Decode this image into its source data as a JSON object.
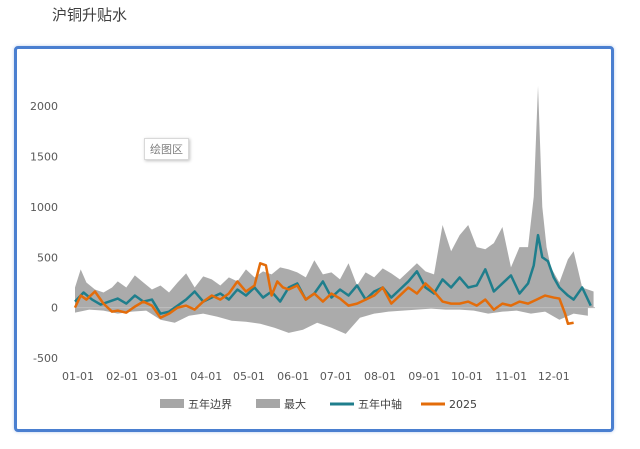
{
  "title": "沪铜升贴水",
  "plot_area_tooltip": "绘图区",
  "chart_data": {
    "type": "area",
    "title": "",
    "xlabel": "",
    "ylabel": "",
    "ylim": [
      -500,
      2200
    ],
    "y_ticks": [
      -500,
      0,
      500,
      1000,
      1500,
      2000
    ],
    "x_range": [
      0,
      365
    ],
    "x_ticks": [
      {
        "label": "01-01",
        "x": 0
      },
      {
        "label": "02-01",
        "x": 31
      },
      {
        "label": "03-01",
        "x": 59
      },
      {
        "label": "04-01",
        "x": 90
      },
      {
        "label": "05-01",
        "x": 120
      },
      {
        "label": "06-01",
        "x": 151
      },
      {
        "label": "07-01",
        "x": 181
      },
      {
        "label": "08-01",
        "x": 212
      },
      {
        "label": "09-01",
        "x": 243
      },
      {
        "label": "10-01",
        "x": 273
      },
      {
        "label": "11-01",
        "x": 304
      },
      {
        "label": "12-01",
        "x": 334
      }
    ],
    "legend_position": "bottom",
    "grid": false,
    "series": [
      {
        "name": "五年边界",
        "type": "area",
        "color": "#a6a6a6",
        "x": [
          0,
          10,
          20,
          30,
          40,
          50,
          60,
          70,
          80,
          90,
          100,
          110,
          120,
          130,
          140,
          150,
          160,
          170,
          180,
          190,
          200,
          210,
          220,
          230,
          240,
          250,
          260,
          270,
          280,
          290,
          300,
          310,
          320,
          330,
          340,
          350,
          360
        ],
        "y": [
          -50,
          -20,
          -30,
          -60,
          -40,
          -30,
          -120,
          -150,
          -80,
          -60,
          -90,
          -130,
          -140,
          -160,
          -200,
          -250,
          -220,
          -150,
          -200,
          -260,
          -100,
          -60,
          -40,
          -30,
          -20,
          -10,
          -20,
          -20,
          -30,
          -60,
          -40,
          -30,
          -60,
          -40,
          -120,
          -60,
          -80
        ]
      },
      {
        "name": "最大",
        "type": "area",
        "color": "#a6a6a6",
        "x": [
          0,
          4,
          8,
          14,
          20,
          26,
          30,
          36,
          42,
          48,
          54,
          60,
          66,
          72,
          78,
          84,
          90,
          96,
          102,
          108,
          114,
          120,
          126,
          132,
          138,
          144,
          150,
          156,
          162,
          168,
          174,
          180,
          186,
          192,
          198,
          204,
          210,
          216,
          222,
          228,
          234,
          240,
          246,
          252,
          258,
          264,
          270,
          276,
          282,
          288,
          294,
          300,
          306,
          312,
          318,
          322,
          325,
          328,
          331,
          334,
          340,
          346,
          350,
          356,
          360,
          364
        ],
        "y": [
          200,
          380,
          250,
          180,
          150,
          200,
          260,
          200,
          320,
          250,
          180,
          220,
          150,
          250,
          340,
          200,
          310,
          280,
          220,
          300,
          260,
          380,
          300,
          360,
          330,
          400,
          380,
          350,
          300,
          470,
          330,
          350,
          280,
          440,
          220,
          350,
          300,
          390,
          340,
          280,
          360,
          440,
          360,
          330,
          820,
          560,
          720,
          820,
          600,
          580,
          640,
          800,
          400,
          600,
          600,
          1100,
          2200,
          1000,
          600,
          400,
          250,
          480,
          560,
          200,
          180,
          160
        ]
      },
      {
        "name": "五年中轴",
        "type": "line",
        "color": "#1f7e8c",
        "x": [
          0,
          6,
          12,
          18,
          24,
          30,
          36,
          42,
          48,
          54,
          60,
          66,
          72,
          78,
          84,
          90,
          96,
          102,
          108,
          114,
          120,
          126,
          132,
          138,
          144,
          150,
          156,
          162,
          168,
          174,
          180,
          186,
          192,
          198,
          204,
          210,
          216,
          222,
          228,
          234,
          240,
          246,
          252,
          258,
          264,
          270,
          276,
          282,
          288,
          294,
          300,
          306,
          312,
          318,
          322,
          325,
          328,
          332,
          336,
          340,
          346,
          350,
          356,
          362
        ],
        "y": [
          60,
          150,
          80,
          30,
          60,
          90,
          40,
          120,
          60,
          80,
          -60,
          -40,
          20,
          80,
          160,
          60,
          100,
          140,
          80,
          180,
          120,
          200,
          100,
          160,
          60,
          200,
          240,
          80,
          140,
          260,
          100,
          180,
          120,
          220,
          80,
          160,
          200,
          100,
          180,
          260,
          360,
          200,
          140,
          280,
          200,
          300,
          200,
          220,
          380,
          160,
          240,
          320,
          140,
          240,
          420,
          720,
          500,
          460,
          300,
          200,
          120,
          80,
          200,
          20
        ]
      },
      {
        "name": "2025",
        "type": "line",
        "color": "#e36c0a",
        "x": [
          0,
          4,
          8,
          14,
          20,
          26,
          30,
          36,
          42,
          48,
          54,
          60,
          66,
          72,
          78,
          84,
          90,
          96,
          102,
          108,
          114,
          120,
          126,
          130,
          134,
          138,
          142,
          146,
          150,
          156,
          162,
          168,
          174,
          180,
          186,
          192,
          198,
          204,
          210,
          216,
          222,
          228,
          234,
          240,
          246,
          252,
          258,
          264,
          270,
          276,
          282,
          288,
          294,
          300,
          306,
          312,
          318,
          324,
          330,
          336,
          340,
          344,
          346,
          350
        ],
        "y": [
          0,
          120,
          80,
          160,
          40,
          -40,
          -30,
          -50,
          10,
          60,
          20,
          -100,
          -60,
          0,
          20,
          -20,
          60,
          120,
          80,
          140,
          260,
          160,
          220,
          440,
          420,
          120,
          260,
          200,
          180,
          220,
          80,
          140,
          60,
          140,
          90,
          20,
          40,
          80,
          120,
          200,
          40,
          120,
          200,
          140,
          240,
          160,
          60,
          40,
          40,
          60,
          20,
          80,
          -20,
          40,
          20,
          60,
          40,
          80,
          120,
          100,
          90,
          -60,
          -160,
          -150
        ]
      }
    ]
  }
}
